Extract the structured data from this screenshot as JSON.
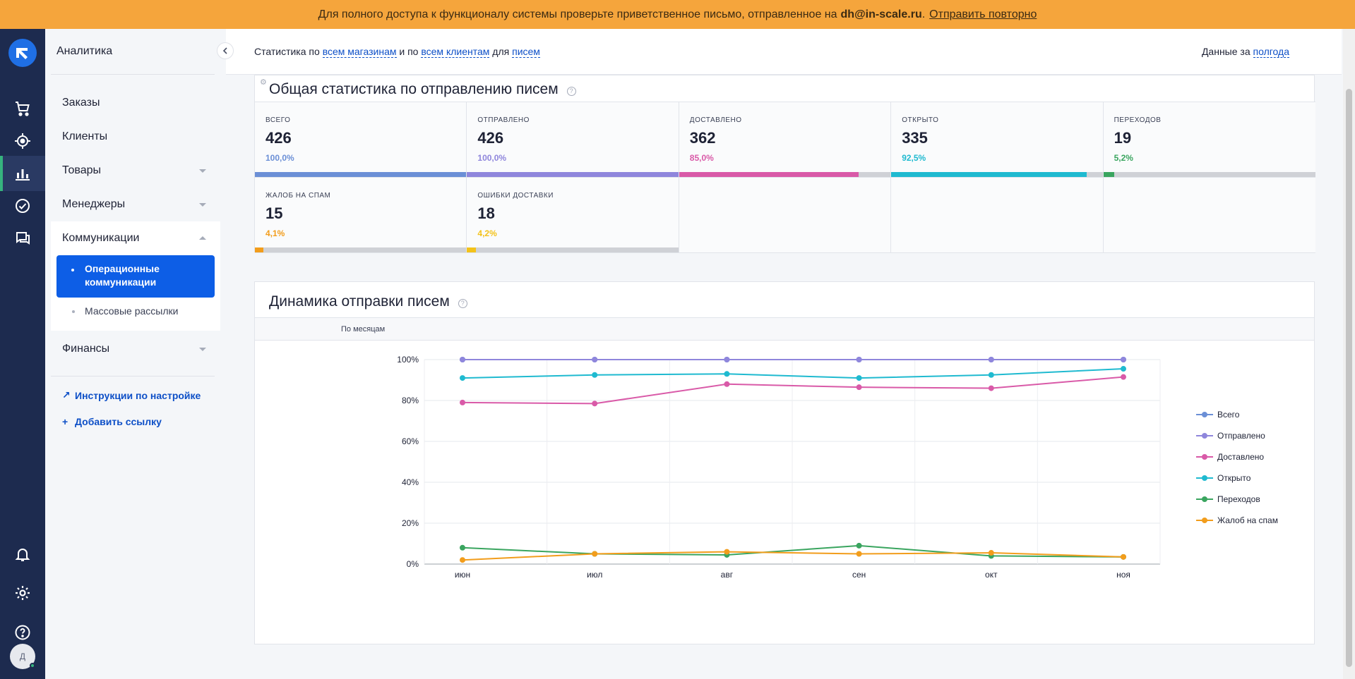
{
  "banner": {
    "text": "Для полного доступа к функционалу системы проверьте приветственное письмо, отправленное на",
    "email": "dh@in-scale.ru",
    "suffix": ".",
    "link": "Отправить повторно"
  },
  "rail": {
    "avatar_letter": "Д",
    "icons": [
      "logo-icon",
      "cart-icon",
      "target-icon",
      "analytics-icon",
      "check-icon",
      "chat-icon",
      "bell-icon",
      "gear-icon",
      "help-icon"
    ]
  },
  "nav": {
    "title": "Аналитика",
    "items": {
      "orders": "Заказы",
      "clients": "Клиенты",
      "goods": "Товары",
      "managers": "Менеджеры",
      "communications": "Коммуникации",
      "finance": "Финансы"
    },
    "sub_items": {
      "operational": "Операционные коммуникации",
      "mass": "Массовые рассылки"
    },
    "links": {
      "instructions": "Инструкции по настройке",
      "add_link": "Добавить ссылку"
    }
  },
  "filter": {
    "t1": "Статистика по",
    "l1": "всем магазинам",
    "t2": "и по",
    "l2": "всем клиентам",
    "t3": "для",
    "l3": "писем",
    "period_label": "Данные за",
    "period_value": "полгода"
  },
  "stats": {
    "title": "Общая статистика по отправлению писем",
    "help": "?",
    "cells": [
      {
        "label": "Всего",
        "value": "426",
        "percent": "100,0%",
        "fill": 1.0,
        "color": "#6b8fd6"
      },
      {
        "label": "Отправлено",
        "value": "426",
        "percent": "100,0%",
        "fill": 1.0,
        "color": "#8f86dc"
      },
      {
        "label": "Доставлено",
        "value": "362",
        "percent": "85,0%",
        "fill": 0.85,
        "color": "#d95aa8"
      },
      {
        "label": "Открыто",
        "value": "335",
        "percent": "92,5%",
        "fill": 0.925,
        "color": "#1fbad0"
      },
      {
        "label": "Переходов",
        "value": "19",
        "percent": "5,2%",
        "fill": 0.052,
        "color": "#3aa55f"
      },
      {
        "label": "Жалоб на спам",
        "value": "15",
        "percent": "4,1%",
        "fill": 0.041,
        "color": "#f29d1c"
      },
      {
        "label": "Ошибки доставки",
        "value": "18",
        "percent": "4,2%",
        "fill": 0.042,
        "color": "#f3c21a"
      }
    ]
  },
  "dynamics": {
    "title": "Динамика отправки писем",
    "help": "?",
    "period_mode": "По месяцам"
  },
  "chart_data": {
    "type": "line",
    "categories": [
      "июн",
      "июл",
      "авг",
      "сен",
      "окт",
      "ноя"
    ],
    "yticks": [
      "0%",
      "20%",
      "40%",
      "60%",
      "80%",
      "100%"
    ],
    "ylim": [
      0,
      100
    ],
    "grid": true,
    "legend_position": "right",
    "series": [
      {
        "name": "Всего",
        "color": "#6b8fd6",
        "values": [
          100,
          100,
          100,
          100,
          100,
          100
        ]
      },
      {
        "name": "Отправлено",
        "color": "#8f86dc",
        "values": [
          100,
          100,
          100,
          100,
          100,
          100
        ]
      },
      {
        "name": "Доставлено",
        "color": "#d95aa8",
        "values": [
          79,
          78.5,
          88,
          86.5,
          86,
          91.5
        ]
      },
      {
        "name": "Открыто",
        "color": "#1fbad0",
        "values": [
          91,
          92.5,
          93,
          91,
          92.5,
          95.5
        ]
      },
      {
        "name": "Переходов",
        "color": "#3aa55f",
        "values": [
          8,
          5,
          4.5,
          9,
          4,
          3.5
        ]
      },
      {
        "name": "Жалоб на спам",
        "color": "#f29d1c",
        "values": [
          2,
          5,
          6,
          5,
          5.5,
          3.5
        ]
      }
    ]
  }
}
